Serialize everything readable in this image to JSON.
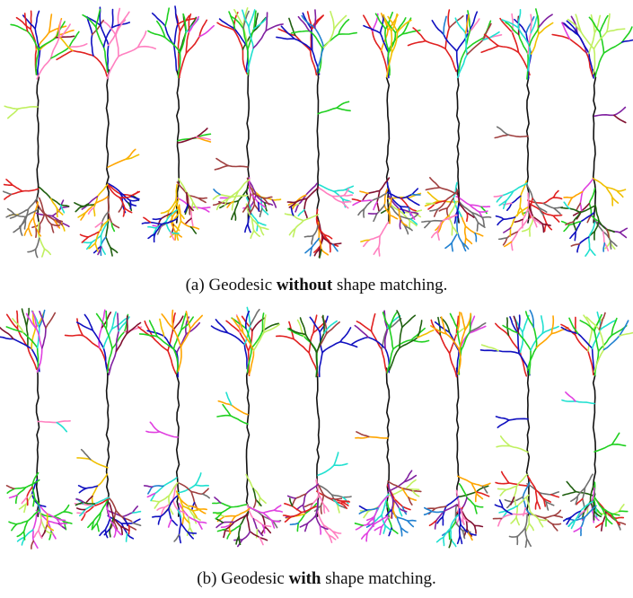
{
  "captions": [
    {
      "label": "(a)",
      "prefix": "Geodesic",
      "emphasis": "without",
      "suffix": "shape matching."
    },
    {
      "label": "(b)",
      "prefix": "Geodesic",
      "emphasis": "with",
      "suffix": "shape matching."
    }
  ]
}
